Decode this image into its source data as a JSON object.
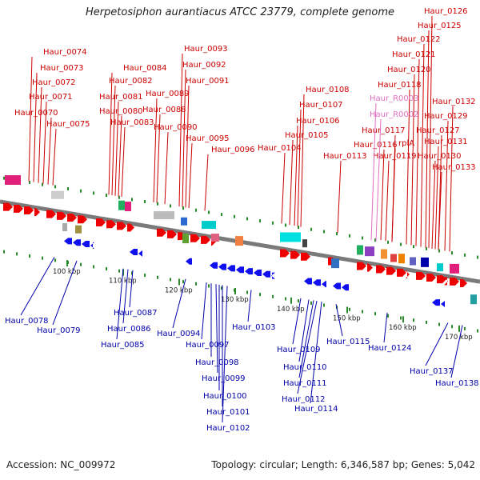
{
  "title": "Herpetosiphon aurantiacus ATCC 23779, complete genome",
  "footer": {
    "accession": "Accession: NC_009972",
    "summary": "Topology: circular; Length: 6,346,587 bp; Genes: 5,042"
  },
  "colors": {
    "forward_label": "#cc0000",
    "reverse_label": "#0000aa",
    "rna_label": "#e070c0",
    "backbone": "#7a7a7a"
  },
  "scale_ticks": [
    "100 kbp",
    "110 kbp",
    "120 kbp",
    "130 kbp",
    "140 kbp",
    "150 kbp",
    "160 kbp",
    "170 kbp"
  ],
  "forward_genes": [
    "Haur_0074",
    "Haur_0073",
    "Haur_0072",
    "Haur_0071",
    "Haur_0070",
    "Haur_0075",
    "Haur_0084",
    "Haur_0082",
    "Haur_0081",
    "Haur_0080",
    "Haur_0083",
    "Haur_0093",
    "Haur_0092",
    "Haur_0091",
    "Haur_0089",
    "Haur_0088",
    "Haur_0090",
    "Haur_0095",
    "Haur_0096",
    "Haur_0108",
    "Haur_0107",
    "Haur_0106",
    "Haur_0105",
    "Haur_0104",
    "Haur_0113",
    "Haur_0126",
    "Haur_0125",
    "Haur_0122",
    "Haur_0121",
    "Haur_0120",
    "Haur_0118",
    "Haur_0117",
    "Haur_0116",
    "rplA",
    "Haur_0119",
    "Haur_0132",
    "Haur_0129",
    "Haur_0127",
    "Haur_0131",
    "Haur_0130",
    "Haur_0133"
  ],
  "rna_genes": [
    "Haur_R0003",
    "Haur_R0002"
  ],
  "reverse_genes": [
    "Haur_0078",
    "Haur_0079",
    "Haur_0087",
    "Haur_0086",
    "Haur_0085",
    "Haur_0094",
    "Haur_0097",
    "Haur_0098",
    "Haur_0099",
    "Haur_0100",
    "Haur_0101",
    "Haur_0102",
    "Haur_0103",
    "Haur_0109",
    "Haur_0110",
    "Haur_0111",
    "Haur_0112",
    "Haur_0114",
    "Haur_0115",
    "Haur_0124",
    "Haur_0137",
    "Haur_0138"
  ]
}
